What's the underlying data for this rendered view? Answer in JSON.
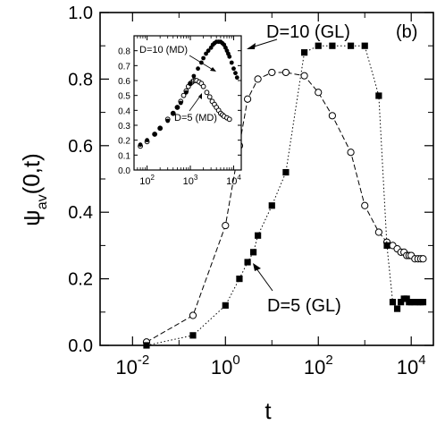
{
  "chart_data": [
    {
      "type": "scatter",
      "xlabel": "t",
      "ylabel_main": "ψ",
      "ylabel_sub": "av",
      "ylabel_tail": "(0,t)",
      "x_scale": "log",
      "xlim": [
        0.002,
        30000
      ],
      "ylim": [
        0.0,
        1.0
      ],
      "x_ticks": [
        {
          "value": 0.01,
          "base": "10",
          "exp": "-2"
        },
        {
          "value": 1,
          "base": "10",
          "exp": "0"
        },
        {
          "value": 100,
          "base": "10",
          "exp": "2"
        },
        {
          "value": 10000,
          "base": "10",
          "exp": "4"
        }
      ],
      "y_ticks": [
        {
          "value": 0.0,
          "label": "0.0"
        },
        {
          "value": 0.2,
          "label": "0.2"
        },
        {
          "value": 0.4,
          "label": "0.4"
        },
        {
          "value": 0.6,
          "label": "0.6"
        },
        {
          "value": 0.8,
          "label": "0.8"
        },
        {
          "value": 1.0,
          "label": "1.0"
        }
      ],
      "panel_label": "(b)",
      "annotations": [
        {
          "text": "D=10 (GL)",
          "series": "D=10 (GL)"
        },
        {
          "text": "D=5 (GL)",
          "series": "D=5 (GL)"
        }
      ],
      "series": [
        {
          "name": "D=5 (GL)",
          "marker": "open-circle",
          "line": "dashed",
          "x": [
            0.02,
            0.2,
            1,
            2,
            3,
            5,
            10,
            20,
            50,
            100,
            200,
            500,
            1000,
            2000,
            3000,
            4000,
            5000,
            6000,
            7000,
            8000,
            9000,
            10000,
            12000,
            14000,
            16000,
            18000
          ],
          "y": [
            0.01,
            0.09,
            0.36,
            0.6,
            0.74,
            0.8,
            0.82,
            0.82,
            0.81,
            0.76,
            0.69,
            0.58,
            0.42,
            0.34,
            0.31,
            0.3,
            0.29,
            0.28,
            0.28,
            0.27,
            0.27,
            0.27,
            0.26,
            0.26,
            0.26,
            0.26
          ]
        },
        {
          "name": "D=10 (GL)",
          "marker": "filled-square",
          "line": "dotted",
          "x": [
            0.02,
            0.2,
            1,
            2,
            3,
            4,
            5,
            10,
            20,
            50,
            100,
            200,
            500,
            1000,
            2000,
            3000,
            4000,
            5000,
            6000,
            7000,
            8000,
            9000,
            10000,
            12000,
            14000,
            16000,
            18000
          ],
          "y": [
            0.0,
            0.03,
            0.12,
            0.2,
            0.25,
            0.28,
            0.33,
            0.42,
            0.52,
            0.88,
            0.9,
            0.9,
            0.9,
            0.9,
            0.75,
            0.3,
            0.13,
            0.11,
            0.13,
            0.14,
            0.14,
            0.13,
            0.13,
            0.13,
            0.13,
            0.13,
            0.13
          ]
        }
      ]
    },
    {
      "type": "scatter",
      "inset": true,
      "x_scale": "log",
      "xlim": [
        50,
        15000
      ],
      "ylim": [
        0.0,
        0.9
      ],
      "x_ticks": [
        {
          "value": 100,
          "base": "10",
          "exp": "2"
        },
        {
          "value": 1000,
          "base": "10",
          "exp": "3"
        },
        {
          "value": 10000,
          "base": "10",
          "exp": "4"
        }
      ],
      "y_ticks": [
        {
          "value": 0.0,
          "label": "0.0"
        },
        {
          "value": 0.1,
          "label": "0.1"
        },
        {
          "value": 0.2,
          "label": "0.2"
        },
        {
          "value": 0.3,
          "label": "0.3"
        },
        {
          "value": 0.4,
          "label": "0.4"
        },
        {
          "value": 0.5,
          "label": "0.5"
        },
        {
          "value": 0.6,
          "label": "0.6"
        },
        {
          "value": 0.7,
          "label": "0.7"
        },
        {
          "value": 0.8,
          "label": "0.8"
        }
      ],
      "annotations": [
        {
          "text": "D=10 (MD)",
          "series": "D=10 (MD)"
        },
        {
          "text": "D=5 (MD)",
          "series": "D=5 (MD)"
        }
      ],
      "series": [
        {
          "name": "D=5 (MD)",
          "marker": "open-circle",
          "line": "none",
          "x": [
            70,
            100,
            150,
            200,
            300,
            400,
            500,
            600,
            700,
            800,
            900,
            1000,
            1100,
            1200,
            1300,
            1400,
            1600,
            1800,
            2000,
            2400,
            2800,
            3200,
            3600,
            4000,
            4500,
            5000,
            5500,
            6000,
            7000,
            8000
          ],
          "y": [
            0.16,
            0.19,
            0.24,
            0.28,
            0.34,
            0.38,
            0.42,
            0.46,
            0.5,
            0.53,
            0.56,
            0.58,
            0.59,
            0.6,
            0.6,
            0.6,
            0.59,
            0.58,
            0.56,
            0.52,
            0.49,
            0.46,
            0.44,
            0.42,
            0.4,
            0.38,
            0.37,
            0.36,
            0.35,
            0.34
          ]
        },
        {
          "name": "D=10 (MD)",
          "marker": "filled-circle",
          "line": "none",
          "x": [
            70,
            100,
            150,
            200,
            300,
            400,
            500,
            600,
            800,
            1000,
            1200,
            1500,
            1800,
            2000,
            2300,
            2600,
            3000,
            3300,
            3600,
            4000,
            4500,
            5000,
            5500,
            6000,
            6500,
            7000,
            7500,
            8000,
            9000,
            10000,
            11000,
            12000
          ],
          "y": [
            0.17,
            0.2,
            0.24,
            0.28,
            0.33,
            0.38,
            0.42,
            0.45,
            0.52,
            0.58,
            0.63,
            0.68,
            0.72,
            0.75,
            0.78,
            0.8,
            0.82,
            0.84,
            0.85,
            0.86,
            0.86,
            0.86,
            0.85,
            0.84,
            0.82,
            0.8,
            0.78,
            0.76,
            0.72,
            0.68,
            0.65,
            0.62
          ]
        }
      ]
    }
  ]
}
